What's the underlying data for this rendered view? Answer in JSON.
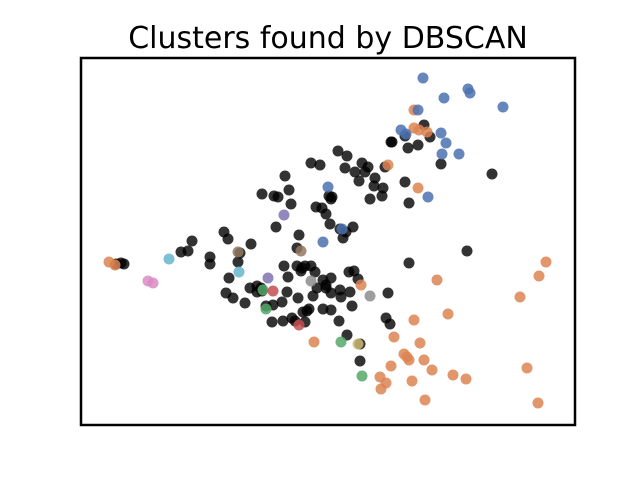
{
  "chart_data": {
    "type": "scatter",
    "title": "Clusters found by DBSCAN",
    "xlabel": "",
    "ylabel": "",
    "axes_ticks": false,
    "grid": false,
    "colors": {
      "noise": "#000000",
      "orange": "#dd8452",
      "blue": "#4c72b0",
      "green": "#55a868",
      "red": "#c44e52",
      "purple": "#8172b3",
      "brown": "#937860",
      "pink": "#da8bc3",
      "gray": "#8c8c8c",
      "olive": "#ccb974",
      "cyan": "#64b5cd"
    },
    "series": [
      {
        "id": "noise",
        "color_key": "noise",
        "points": [
          [
            124,
            264
          ],
          [
            121,
            263
          ],
          [
            181,
            252
          ],
          [
            192,
            241
          ],
          [
            188,
            251
          ],
          [
            210,
            257
          ],
          [
            210,
            264
          ],
          [
            224,
            232
          ],
          [
            228,
            239
          ],
          [
            229,
            278
          ],
          [
            238,
            262
          ],
          [
            240,
            253
          ],
          [
            251,
            244
          ],
          [
            226,
            293
          ],
          [
            233,
            298
          ],
          [
            245,
            303
          ],
          [
            250,
            288
          ],
          [
            257,
            292
          ],
          [
            262,
            291
          ],
          [
            266,
            306
          ],
          [
            273,
            305
          ],
          [
            282,
            302
          ],
          [
            272,
            322
          ],
          [
            283,
            321
          ],
          [
            292,
            318
          ],
          [
            295,
            321
          ],
          [
            305,
            322
          ],
          [
            307,
            311
          ],
          [
            309,
            309
          ],
          [
            298,
            298
          ],
          [
            287,
            292
          ],
          [
            288,
            277
          ],
          [
            284,
            266
          ],
          [
            297,
            266
          ],
          [
            302,
            268
          ],
          [
            305,
            266
          ],
          [
            301,
            271
          ],
          [
            311,
            266
          ],
          [
            315,
            272
          ],
          [
            313,
            296
          ],
          [
            317,
            288
          ],
          [
            326,
            285
          ],
          [
            331,
            278
          ],
          [
            331,
            293
          ],
          [
            323,
            309
          ],
          [
            331,
            310
          ],
          [
            339,
            321
          ],
          [
            347,
            335
          ],
          [
            360,
            344
          ],
          [
            360,
            361
          ],
          [
            352,
            306
          ],
          [
            341,
            297
          ],
          [
            340,
            290
          ],
          [
            350,
            292
          ],
          [
            358,
            279
          ],
          [
            349,
            272
          ],
          [
            354,
            271
          ],
          [
            388,
            293
          ],
          [
            386,
            318
          ],
          [
            409,
            263
          ],
          [
            467,
            251
          ],
          [
            492,
            174
          ],
          [
            441,
            164
          ],
          [
            430,
            137
          ],
          [
            424,
            125
          ],
          [
            418,
            145
          ],
          [
            408,
            148
          ],
          [
            405,
            136
          ],
          [
            392,
            142
          ],
          [
            385,
            167
          ],
          [
            374,
            186
          ],
          [
            383,
            188
          ],
          [
            382,
            196
          ],
          [
            370,
            199
          ],
          [
            375,
            178
          ],
          [
            365,
            172
          ],
          [
            368,
            167
          ],
          [
            362,
            163
          ],
          [
            355,
            172
          ],
          [
            359,
            181
          ],
          [
            347,
            156
          ],
          [
            345,
            168
          ],
          [
            338,
            151
          ],
          [
            320,
            165
          ],
          [
            311,
            163
          ],
          [
            285,
            176
          ],
          [
            289,
            190
          ],
          [
            291,
            204
          ],
          [
            278,
            197
          ],
          [
            274,
            196
          ],
          [
            262,
            194
          ],
          [
            276,
            227
          ],
          [
            299,
            235
          ],
          [
            297,
            248
          ],
          [
            316,
            207
          ],
          [
            326,
            214
          ],
          [
            322,
            208
          ],
          [
            329,
            196
          ],
          [
            331,
            199
          ],
          [
            332,
            197
          ],
          [
            330,
            224
          ],
          [
            340,
            229
          ],
          [
            343,
            238
          ],
          [
            346,
            232
          ],
          [
            353,
            227
          ],
          [
            391,
            142
          ],
          [
            405,
            182
          ],
          [
            409,
            203
          ],
          [
            390,
            324
          ],
          [
            116,
            264
          ],
          [
            326,
            288
          ],
          [
            257,
            286
          ],
          [
            303,
            312
          ],
          [
            261,
            288
          ],
          [
            323,
            280
          ]
        ]
      },
      {
        "id": "cluster-orange-1",
        "color_key": "orange",
        "points": [
          [
            109,
            262
          ],
          [
            115,
            265
          ],
          [
            388,
            165
          ],
          [
            414,
            110
          ],
          [
            414,
            128
          ],
          [
            419,
            130
          ],
          [
            427,
            132
          ],
          [
            418,
            188
          ],
          [
            437,
            280
          ],
          [
            448,
            314
          ],
          [
            394,
            337
          ],
          [
            414,
            320
          ],
          [
            420,
            343
          ],
          [
            404,
            354
          ],
          [
            409,
            360
          ],
          [
            424,
            360
          ],
          [
            432,
            370
          ],
          [
            453,
            375
          ],
          [
            466,
            379
          ],
          [
            380,
            377
          ],
          [
            386,
            383
          ],
          [
            381,
            389
          ],
          [
            412,
            381
          ],
          [
            425,
            400
          ],
          [
            538,
            403
          ],
          [
            527,
            368
          ],
          [
            520,
            297
          ],
          [
            539,
            276
          ],
          [
            546,
            262
          ],
          [
            314,
            342
          ],
          [
            361,
            285
          ],
          [
            391,
            366
          ],
          [
            407,
            357
          ]
        ]
      },
      {
        "id": "cluster-blue",
        "color_key": "blue",
        "points": [
          [
            423,
            78
          ],
          [
            444,
            98
          ],
          [
            468,
            89
          ],
          [
            470,
            93
          ],
          [
            503,
            107
          ],
          [
            418,
            110
          ],
          [
            401,
            130
          ],
          [
            406,
            134
          ],
          [
            441,
            133
          ],
          [
            446,
            143
          ],
          [
            442,
            154
          ],
          [
            459,
            154
          ],
          [
            428,
            197
          ],
          [
            328,
            187
          ],
          [
            323,
            242
          ],
          [
            342,
            229
          ]
        ]
      },
      {
        "id": "cluster-green",
        "color_key": "green",
        "points": [
          [
            266,
            309
          ],
          [
            263,
            290
          ],
          [
            341,
            342
          ],
          [
            362,
            376
          ]
        ]
      },
      {
        "id": "cluster-red",
        "color_key": "red",
        "points": [
          [
            299,
            325
          ],
          [
            273,
            291
          ]
        ]
      },
      {
        "id": "cluster-purple",
        "color_key": "purple",
        "points": [
          [
            284,
            215
          ],
          [
            268,
            278
          ]
        ]
      },
      {
        "id": "cluster-brown",
        "color_key": "brown",
        "points": [
          [
            301,
            251
          ],
          [
            238,
            252
          ]
        ]
      },
      {
        "id": "cluster-pink",
        "color_key": "pink",
        "points": [
          [
            148,
            281
          ],
          [
            153,
            283
          ]
        ]
      },
      {
        "id": "cluster-gray",
        "color_key": "gray",
        "points": [
          [
            370,
            296
          ],
          [
            311,
            281
          ]
        ]
      },
      {
        "id": "cluster-olive",
        "color_key": "olive",
        "points": [
          [
            358,
            344
          ]
        ]
      },
      {
        "id": "cluster-cyan",
        "color_key": "cyan",
        "points": [
          [
            169,
            259
          ],
          [
            239,
            272
          ]
        ]
      }
    ]
  }
}
